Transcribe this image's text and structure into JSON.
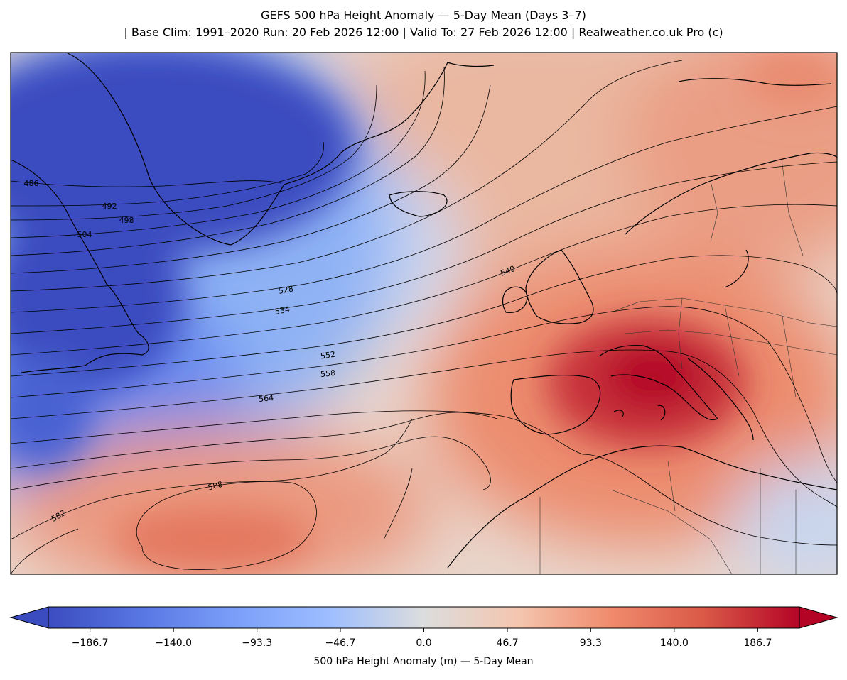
{
  "title": {
    "line1": "GEFS 500 hPa Height Anomaly — 5-Day Mean (Days 3–7)",
    "line2": "| Base Clim: 1991–2020 Run: 20 Feb 2026 12:00 | Valid To: 27 Feb 2026 12:00 | Realweather.co.uk Pro (c)"
  },
  "map": {
    "contour_labels": [
      "486",
      "492",
      "498",
      "504",
      "528",
      "534",
      "540",
      "552",
      "558",
      "564",
      "582",
      "588"
    ],
    "colors": {
      "strong_negative": "#3b4cc0",
      "neutral": "#dcdddd",
      "strong_positive": "#b40426"
    }
  },
  "colorbar": {
    "ticks": [
      "−186.7",
      "−140.0",
      "−93.3",
      "−46.7",
      "0.0",
      "46.7",
      "93.3",
      "140.0",
      "186.7"
    ],
    "label": "500 hPa Height Anomaly (m) — 5-Day Mean",
    "range": [
      -210,
      210
    ]
  }
}
